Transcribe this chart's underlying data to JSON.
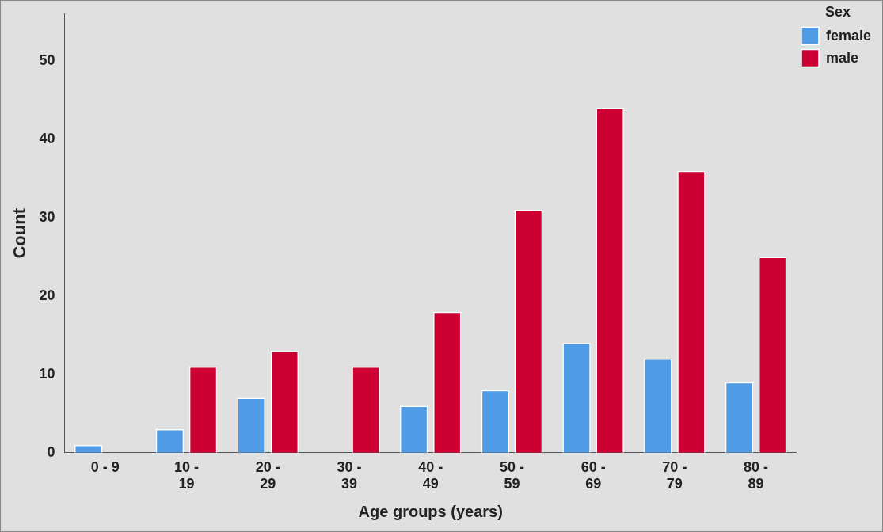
{
  "chart_data": {
    "type": "bar",
    "xlabel": "Age groups (years)",
    "ylabel": "Count",
    "legend_title": "Sex",
    "categories": [
      "0 - 9",
      "10 - 19",
      "20 - 29",
      "30 - 39",
      "40 - 49",
      "50 - 59",
      "60 - 69",
      "70 - 79",
      "80 - 89"
    ],
    "series": [
      {
        "name": "female",
        "color": "#4f9be6",
        "values": [
          1,
          3,
          7,
          0,
          6,
          8,
          14,
          12,
          9
        ]
      },
      {
        "name": "male",
        "color": "#cc0033",
        "values": [
          0,
          11,
          13,
          11,
          18,
          31,
          44,
          36,
          25
        ]
      }
    ],
    "ylim": [
      0,
      56
    ],
    "yticks": [
      0,
      10,
      20,
      30,
      40,
      50
    ],
    "grid": false,
    "legend": "top right"
  }
}
